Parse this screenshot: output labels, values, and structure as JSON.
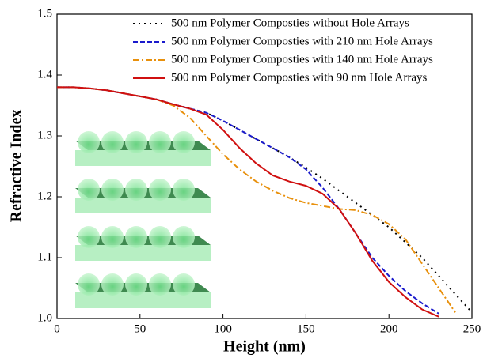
{
  "chart_data": {
    "type": "line",
    "x_label": "Height (nm)",
    "y_label": "Refractive Index",
    "x": [
      0,
      10,
      20,
      30,
      40,
      50,
      60,
      70,
      80,
      90,
      100,
      110,
      120,
      130,
      140,
      150,
      160,
      170,
      180,
      190,
      200,
      210,
      220,
      230,
      240,
      250
    ],
    "series": [
      {
        "name": "500 nm Polymer Composties without Hole Arrays",
        "color": "#000000",
        "dash": "dotted",
        "values": [
          1.38,
          1.38,
          1.378,
          1.375,
          1.37,
          1.365,
          1.36,
          1.352,
          1.345,
          1.338,
          1.325,
          1.31,
          1.295,
          1.28,
          1.265,
          1.248,
          1.23,
          1.21,
          1.19,
          1.17,
          1.15,
          1.125,
          1.1,
          1.07,
          1.04,
          1.01
        ]
      },
      {
        "name": "500 nm Polymer Composties with 210 nm Hole Arrays",
        "color": "#1a1acc",
        "dash": "dashed",
        "values": [
          1.38,
          1.38,
          1.378,
          1.375,
          1.37,
          1.365,
          1.36,
          1.352,
          1.345,
          1.338,
          1.325,
          1.31,
          1.295,
          1.28,
          1.265,
          1.245,
          1.215,
          1.18,
          1.14,
          1.1,
          1.07,
          1.045,
          1.025,
          1.008,
          null,
          null
        ]
      },
      {
        "name": "500 nm Polymer Composties with 140 nm Hole Arrays",
        "color": "#e8900c",
        "dash": "dashdot",
        "values": [
          1.38,
          1.38,
          1.378,
          1.375,
          1.37,
          1.365,
          1.36,
          1.35,
          1.33,
          1.3,
          1.27,
          1.245,
          1.225,
          1.21,
          1.198,
          1.19,
          1.185,
          1.18,
          1.178,
          1.17,
          1.155,
          1.13,
          1.09,
          1.05,
          1.01,
          null
        ]
      },
      {
        "name": "500 nm Polymer Composties with 90 nm Hole Arrays",
        "color": "#d01010",
        "dash": "solid",
        "values": [
          1.38,
          1.38,
          1.378,
          1.375,
          1.37,
          1.365,
          1.36,
          1.352,
          1.345,
          1.335,
          1.31,
          1.28,
          1.255,
          1.235,
          1.225,
          1.218,
          1.205,
          1.18,
          1.14,
          1.095,
          1.06,
          1.035,
          1.015,
          1.003,
          null,
          null
        ]
      }
    ],
    "xlim": [
      0,
      250
    ],
    "xticks": [
      0,
      50,
      100,
      150,
      200,
      250
    ],
    "ylim": [
      1,
      1.5
    ],
    "yticks": [
      {
        "value": 1,
        "label": "1.0"
      },
      1.1,
      1.2,
      1.3,
      1.4,
      1.5
    ],
    "grid": false,
    "legend": "top-right"
  }
}
